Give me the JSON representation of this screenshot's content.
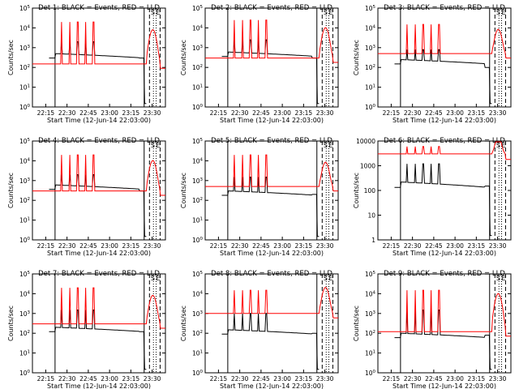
{
  "chart_data": {
    "type": "line",
    "layout": "3x3 grid",
    "panels": [
      {
        "title": "Det 1: BLACK = Events, RED = LLD",
        "xlabel": "Start Time (12-Jun-14 22:03:00)",
        "ylabel": "Counts/sec",
        "xticks": [
          "22:15",
          "22:30",
          "22:45",
          "23:00",
          "23:15",
          "23:30"
        ],
        "ylog": true,
        "yticks": [
          "10^0",
          "10^1",
          "10^2",
          "10^3",
          "10^4",
          "10^5"
        ],
        "annotations": [
          "S",
          "E"
        ],
        "series": [
          {
            "name": "Events",
            "color": "#000000",
            "base": 500,
            "spikes": 2000,
            "end": 300
          },
          {
            "name": "LLD",
            "color": "#ff0000",
            "base": 150,
            "spikes": 20000,
            "hump": 8000
          }
        ]
      },
      {
        "title": "Det 2: BLACK = Events, RED = LLD",
        "xlabel": "Start Time (12-Jun-14 22:03:00)",
        "ylabel": "Counts/sec",
        "xticks": [
          "22:15",
          "22:30",
          "22:45",
          "23:00",
          "23:15",
          "23:30"
        ],
        "ylog": true,
        "yticks": [
          "10^0",
          "10^1",
          "10^2",
          "10^3",
          "10^4",
          "10^5"
        ],
        "annotations": [
          "S",
          "E"
        ],
        "series": [
          {
            "name": "Events",
            "color": "#000000",
            "base": 600,
            "spikes": 2500,
            "end": 300
          },
          {
            "name": "LLD",
            "color": "#ff0000",
            "base": 300,
            "spikes": 25000,
            "hump": 10000
          }
        ]
      },
      {
        "title": "Det 3: BLACK = Events, RED = LLD",
        "xlabel": "Start Time (12-Jun-14 22:03:00)",
        "ylabel": "Counts/sec",
        "xticks": [
          "22:15",
          "22:30",
          "22:45",
          "23:00",
          "23:15",
          "23:30"
        ],
        "ylog": true,
        "yticks": [
          "10^0",
          "10^1",
          "10^2",
          "10^3",
          "10^4",
          "10^5"
        ],
        "annotations": [
          "S",
          "E"
        ],
        "series": [
          {
            "name": "Events",
            "color": "#000000",
            "base": 250,
            "spikes": 800,
            "end": 100
          },
          {
            "name": "LLD",
            "color": "#ff0000",
            "base": 500,
            "spikes": 15000,
            "hump": 8000
          }
        ]
      },
      {
        "title": "Det 4: BLACK = Events, RED = LLD",
        "xlabel": "Start Time (12-Jun-14 22:03:00)",
        "ylabel": "Counts/sec",
        "xticks": [
          "22:15",
          "22:30",
          "22:45",
          "23:00",
          "23:15",
          "23:30"
        ],
        "ylog": true,
        "yticks": [
          "10^0",
          "10^1",
          "10^2",
          "10^3",
          "10^4",
          "10^5"
        ],
        "annotations": [
          "S",
          "E"
        ],
        "series": [
          {
            "name": "Events",
            "color": "#000000",
            "base": 600,
            "spikes": 2000,
            "end": 300
          },
          {
            "name": "LLD",
            "color": "#ff0000",
            "base": 300,
            "spikes": 20000,
            "hump": 10000
          }
        ]
      },
      {
        "title": "Det 5: BLACK = Events, RED = LLD",
        "xlabel": "Start Time (12-Jun-14 22:03:00)",
        "ylabel": "Counts/sec",
        "xticks": [
          "22:15",
          "22:30",
          "22:45",
          "23:00",
          "23:15",
          "23:30"
        ],
        "ylog": true,
        "yticks": [
          "10^0",
          "10^1",
          "10^2",
          "10^3",
          "10^4",
          "10^5"
        ],
        "annotations": [
          "S",
          "E"
        ],
        "series": [
          {
            "name": "Events",
            "color": "#000000",
            "base": 300,
            "spikes": 1500,
            "end": 200
          },
          {
            "name": "LLD",
            "color": "#ff0000",
            "base": 500,
            "spikes": 20000,
            "hump": 8000
          }
        ]
      },
      {
        "title": "Det 6: BLACK = Events, RED = LLD",
        "xlabel": "Start Time (12-Jun-14 22:03:00)",
        "ylabel": "Counts/sec",
        "xticks": [
          "22:15",
          "22:30",
          "22:45",
          "23:00",
          "23:15",
          "23:30"
        ],
        "ylog": true,
        "yticks": [
          "1",
          "10",
          "100",
          "1000",
          "10000"
        ],
        "annotations": [
          "S",
          "E"
        ],
        "series": [
          {
            "name": "Events",
            "color": "#000000",
            "base": 220,
            "spikes": 1200,
            "end": 150
          },
          {
            "name": "LLD",
            "color": "#ff0000",
            "base": 3000,
            "spikes": 6000,
            "hump": 12000
          }
        ]
      },
      {
        "title": "Det 7: BLACK = Events, RED = LLD",
        "xlabel": "Start Time (12-Jun-14 22:03:00)",
        "ylabel": "Counts/sec",
        "xticks": [
          "22:15",
          "22:30",
          "22:45",
          "23:00",
          "23:15",
          "23:30"
        ],
        "ylog": true,
        "yticks": [
          "10^0",
          "10^1",
          "10^2",
          "10^3",
          "10^4",
          "10^5"
        ],
        "annotations": [
          "S",
          "E"
        ],
        "series": [
          {
            "name": "Events",
            "color": "#000000",
            "base": 200,
            "spikes": 1500,
            "end": 120
          },
          {
            "name": "LLD",
            "color": "#ff0000",
            "base": 300,
            "spikes": 20000,
            "hump": 8000
          }
        ]
      },
      {
        "title": "Det 8: BLACK = Events, RED = LLD",
        "xlabel": "Start Time (12-Jun-14 22:03:00)",
        "ylabel": "Counts/sec",
        "xticks": [
          "22:15",
          "22:30",
          "22:45",
          "23:00",
          "23:15",
          "23:30"
        ],
        "ylog": true,
        "yticks": [
          "10^0",
          "10^1",
          "10^2",
          "10^3",
          "10^4",
          "10^5"
        ],
        "annotations": [
          "S",
          "E"
        ],
        "series": [
          {
            "name": "Events",
            "color": "#000000",
            "base": 150,
            "spikes": 1000,
            "end": 100
          },
          {
            "name": "LLD",
            "color": "#ff0000",
            "base": 1000,
            "spikes": 15000,
            "hump": 20000
          }
        ]
      },
      {
        "title": "Det 9: BLACK = Events, RED = LLD",
        "xlabel": "Start Time (12-Jun-14 22:03:00)",
        "ylabel": "Counts/sec",
        "xticks": [
          "22:15",
          "22:30",
          "22:45",
          "23:00",
          "23:15",
          "23:30"
        ],
        "ylog": true,
        "yticks": [
          "10^0",
          "10^1",
          "10^2",
          "10^3",
          "10^4",
          "10^5"
        ],
        "annotations": [
          "S",
          "E"
        ],
        "series": [
          {
            "name": "Events",
            "color": "#000000",
            "base": 100,
            "spikes": 1500,
            "end": 80
          },
          {
            "name": "LLD",
            "color": "#ff0000",
            "base": 120,
            "spikes": 15000,
            "hump": 10000
          }
        ]
      }
    ]
  }
}
